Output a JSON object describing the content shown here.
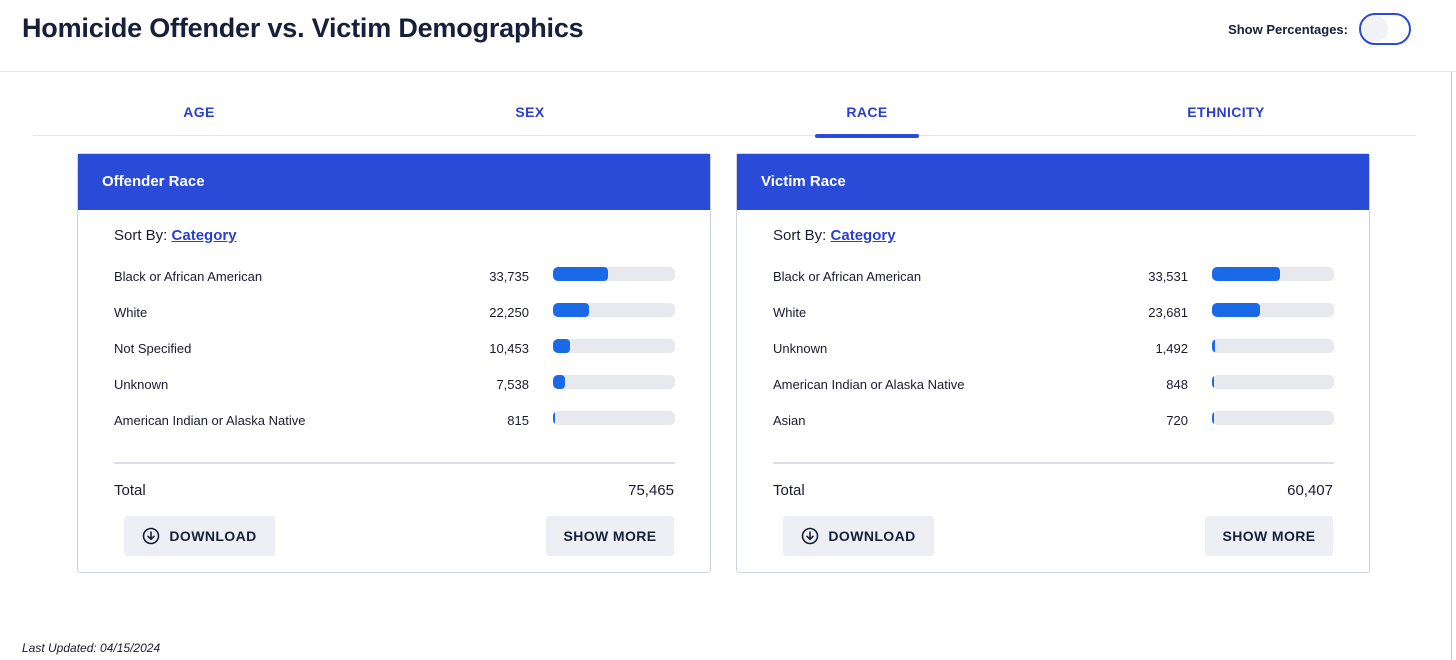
{
  "header": {
    "title": "Homicide Offender vs. Victim Demographics",
    "show_percentages_label": "Show Percentages:",
    "show_percentages_on": false
  },
  "tabs": [
    {
      "label": "AGE",
      "active": false
    },
    {
      "label": "SEX",
      "active": false
    },
    {
      "label": "RACE",
      "active": true
    },
    {
      "label": "ETHNICITY",
      "active": false
    }
  ],
  "cards": [
    {
      "title": "Offender Race",
      "sort_by_label": "Sort By:",
      "sort_by_value": "Category",
      "rows": [
        {
          "label": "Black or African American",
          "value": "33,735",
          "fraction": 0.447
        },
        {
          "label": "White",
          "value": "22,250",
          "fraction": 0.295
        },
        {
          "label": "Not Specified",
          "value": "10,453",
          "fraction": 0.139
        },
        {
          "label": "Unknown",
          "value": "7,538",
          "fraction": 0.1
        },
        {
          "label": "American Indian or Alaska Native",
          "value": "815",
          "fraction": 0.011
        }
      ],
      "total_label": "Total",
      "total_value": "75,465",
      "download_label": "DOWNLOAD",
      "show_more_label": "SHOW MORE"
    },
    {
      "title": "Victim Race",
      "sort_by_label": "Sort By:",
      "sort_by_value": "Category",
      "rows": [
        {
          "label": "Black or African American",
          "value": "33,531",
          "fraction": 0.555
        },
        {
          "label": "White",
          "value": "23,681",
          "fraction": 0.392
        },
        {
          "label": "Unknown",
          "value": "1,492",
          "fraction": 0.025
        },
        {
          "label": "American Indian or Alaska Native",
          "value": "848",
          "fraction": 0.014
        },
        {
          "label": "Asian",
          "value": "720",
          "fraction": 0.012
        }
      ],
      "total_label": "Total",
      "total_value": "60,407",
      "download_label": "DOWNLOAD",
      "show_more_label": "SHOW MORE"
    }
  ],
  "footer": {
    "last_updated": "Last Updated: 04/15/2024"
  },
  "colors": {
    "accent": "#2a4bd8",
    "bar_fill": "#1a6ae8",
    "bar_track": "#e8e9ee",
    "tab_text": "#2a3fd0"
  },
  "icons": {
    "download": "download-circle-icon"
  }
}
